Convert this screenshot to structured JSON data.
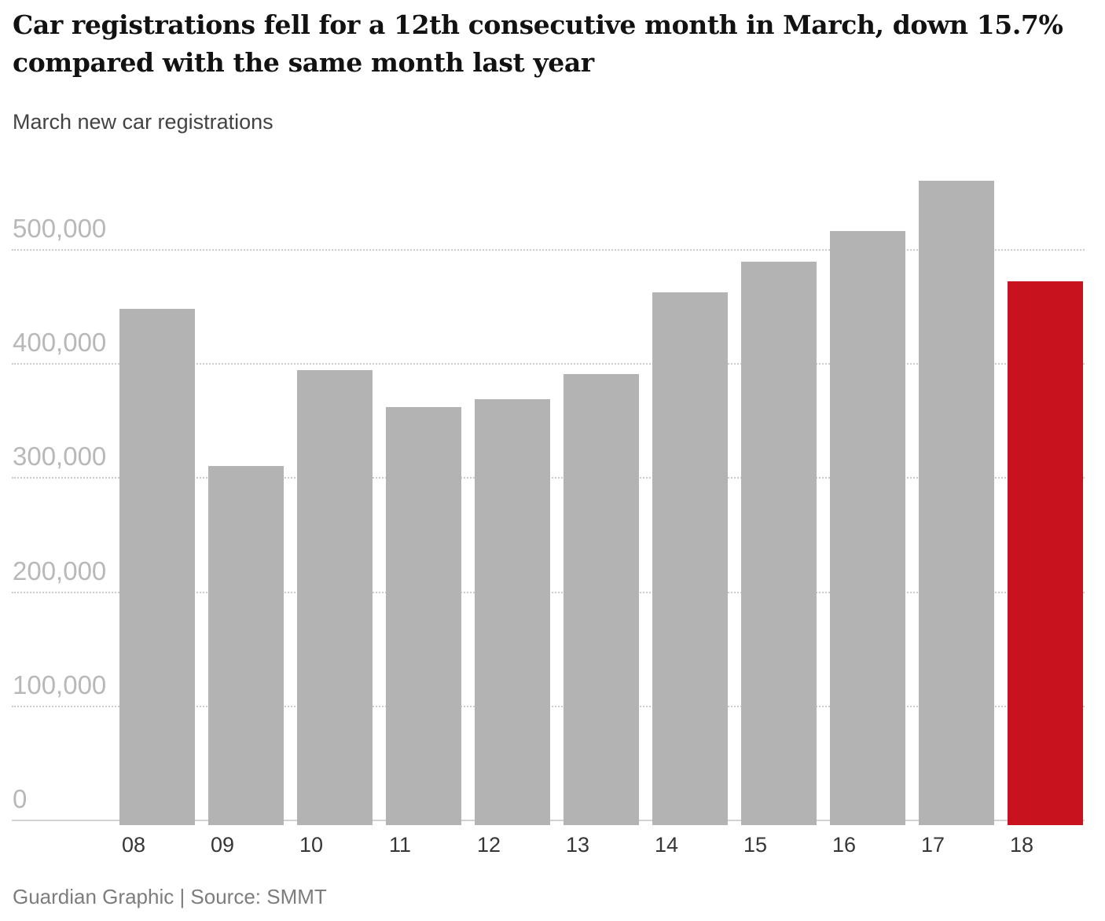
{
  "header": {
    "title_lines": [
      "Car registrations fell for a 12th consecutive month in March, down 15.7%",
      "compared with the same month last year"
    ],
    "subtitle": "March new car registrations"
  },
  "footer": {
    "credit": "Guardian Graphic | Source: SMMT"
  },
  "chart_data": {
    "type": "bar",
    "title": "March new car registrations",
    "categories": [
      "08",
      "09",
      "10",
      "11",
      "12",
      "13",
      "14",
      "15",
      "16",
      "17",
      "18"
    ],
    "values": [
      449000,
      311000,
      395000,
      363000,
      370000,
      392000,
      463000,
      490000,
      517000,
      561000,
      473000
    ],
    "highlight_index": 10,
    "bar_color": "#b3b3b3",
    "highlight_color": "#c8121e",
    "ylim": [
      0,
      588000
    ],
    "yticks": [
      0,
      100000,
      200000,
      300000,
      400000,
      500000
    ],
    "ytick_labels": [
      "0",
      "100,000",
      "200,000",
      "300,000",
      "400,000",
      "500,000"
    ],
    "xlabel": "",
    "ylabel": "",
    "grid": "horizontal dotted, solid zero baseline",
    "legend": "none",
    "grid_color": "#cbcbcb",
    "axis_line_color": "#d2d2d2",
    "ytick_color": "#b8b8b8",
    "xtick_color": "#363636"
  }
}
